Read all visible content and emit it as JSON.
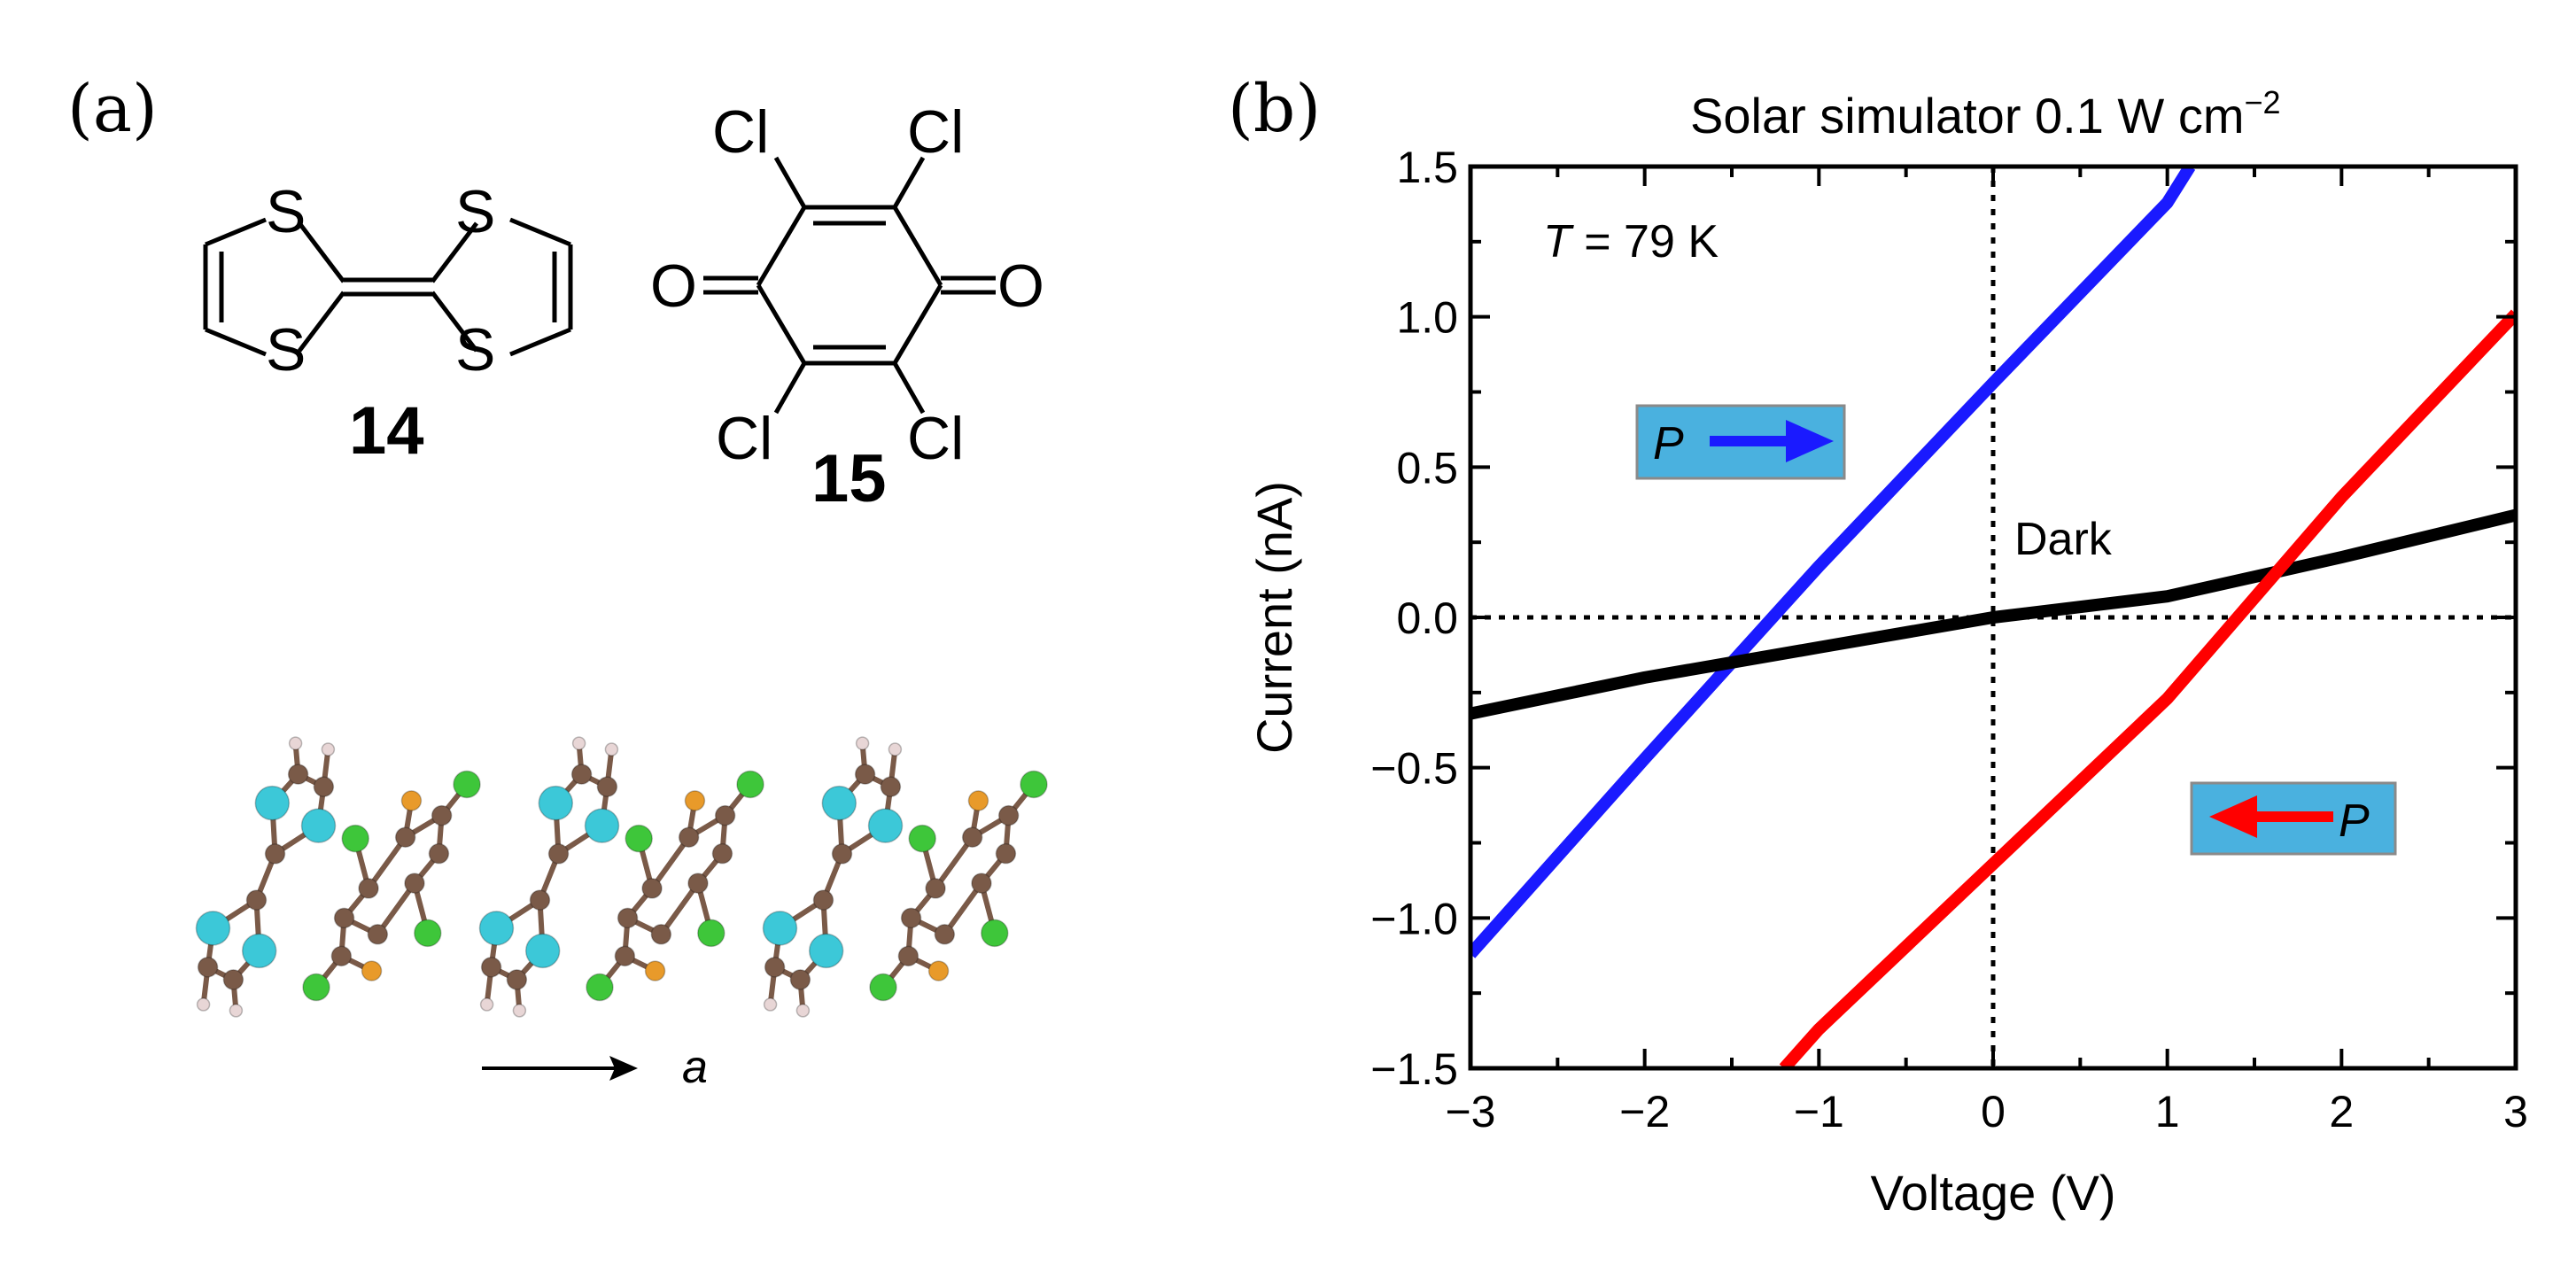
{
  "panel_a": {
    "label": "(a)",
    "molecule_14": {
      "number": "14",
      "atoms": {
        "s_top_left": "S",
        "s_top_right": "S",
        "s_bottom_left": "S",
        "s_bottom_right": "S"
      }
    },
    "molecule_15": {
      "number": "15",
      "atoms": {
        "cl_top_left": "Cl",
        "cl_top_right": "Cl",
        "cl_bottom_left": "Cl",
        "cl_bottom_right": "Cl",
        "o_left": "O",
        "o_right": "O"
      }
    },
    "crystal_axis_label": "a",
    "colors": {
      "carbon": "#7a5a48",
      "sulfur_ttf": "#3cc8d8",
      "sulfur_ca": "#e89a2a",
      "chlorine": "#3ec63a",
      "hydrogen": "#e8d6d6"
    }
  },
  "panel_b": {
    "label": "(b)",
    "title_main": "Solar simulator 0.1 W cm",
    "title_sup": "−2",
    "temperature_var": "T",
    "temperature_value": " = 79 K",
    "dark_label": "Dark",
    "arrow_label": "P",
    "box_color": "#4ab1df"
  },
  "chart_data": {
    "type": "line",
    "title": "Solar simulator 0.1 W cm−2",
    "xlabel": "Voltage (V)",
    "ylabel": "Current (nA)",
    "xlim": [
      -3,
      3
    ],
    "ylim": [
      -1.5,
      1.5
    ],
    "xticks": [
      -3,
      -2,
      -1,
      0,
      1,
      2,
      3
    ],
    "yticks": [
      -1.5,
      -1.0,
      -0.5,
      0.0,
      0.5,
      1.0,
      1.5
    ],
    "xtick_labels": [
      "−3",
      "−2",
      "−1",
      "0",
      "1",
      "2",
      "3"
    ],
    "ytick_labels": [
      "−1.5",
      "−1.0",
      "−0.5",
      "0.0",
      "0.5",
      "1.0",
      "1.5"
    ],
    "reference_lines": {
      "x": 0,
      "y": 0,
      "style": "dotted"
    },
    "series": [
      {
        "name": "P →",
        "color": "#1a1aff",
        "x": [
          -3.0,
          -2.0,
          -1.0,
          0.0,
          1.0,
          1.13
        ],
        "y": [
          -1.12,
          -0.47,
          0.17,
          0.78,
          1.38,
          1.5
        ]
      },
      {
        "name": "Dark",
        "color": "#000000",
        "x": [
          -3.0,
          -2.0,
          -1.0,
          0.0,
          1.0,
          2.0,
          3.0
        ],
        "y": [
          -0.32,
          -0.2,
          -0.1,
          0.0,
          0.07,
          0.2,
          0.34
        ]
      },
      {
        "name": "P ←",
        "color": "#ff0000",
        "x": [
          -1.2,
          -1.0,
          0.0,
          1.0,
          2.0,
          3.0
        ],
        "y": [
          -1.5,
          -1.37,
          -0.82,
          -0.27,
          0.4,
          1.01
        ]
      }
    ]
  }
}
